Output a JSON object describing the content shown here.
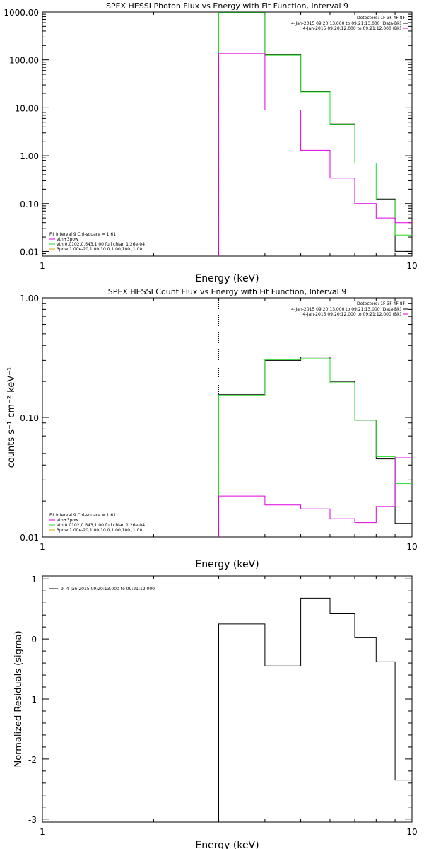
{
  "colors": {
    "black": "#000000",
    "magenta": "#e000e0",
    "green": "#22dd22",
    "orange": "#e8a000"
  },
  "chart_data": [
    {
      "type": "line",
      "title": "SPEX HESSI Photon Flux vs Energy with Fit Function, Interval 9",
      "xlabel": "Energy (keV)",
      "ylabel": "",
      "xscale": "log",
      "yscale": "log",
      "xlim": [
        1,
        10
      ],
      "ylim": [
        0.008,
        1000
      ],
      "xticks": [
        {
          "v": 1,
          "t": "1"
        },
        {
          "v": 10,
          "t": "10"
        }
      ],
      "yticks": [
        {
          "v": 1000,
          "t": "1000.00"
        },
        {
          "v": 100,
          "t": "100.00"
        },
        {
          "v": 10,
          "t": "10.00"
        },
        {
          "v": 1,
          "t": "1.00"
        },
        {
          "v": 0.1,
          "t": "0.10"
        },
        {
          "v": 0.01,
          "t": "0.01"
        }
      ],
      "legend_header": "Detectors: 1F 3F 4F 8F",
      "legend": [
        {
          "text": "4-Jan-2015 09:20:13.000 to 09:21:13.000 (Data-Bk)",
          "color": "black"
        },
        {
          "text": "4-Jan-2015 09:20:12.000 to 09:21:12.000 (Bk)",
          "color": "magenta"
        }
      ],
      "fit_legend": [
        {
          "text": "Fit Interval 9    Chi-square = 1.61",
          "color": ""
        },
        {
          "text": "vth+3pow",
          "color": "magenta"
        },
        {
          "text": "vth 0.0102,0.643,1.00   full chian 1.26e-04",
          "color": "green"
        },
        {
          "text": "3pow 1.00e-20,1.00,10.0,1.00,100.,1.00",
          "color": "orange"
        }
      ],
      "vline": 3,
      "series": [
        {
          "color": "black",
          "edges": [
            3,
            4,
            5,
            6,
            7,
            8,
            9,
            10
          ],
          "values": [
            1000,
            130,
            22,
            4.6,
            null,
            0.125,
            0.01
          ]
        },
        {
          "color": "green",
          "edges": [
            3,
            4,
            5,
            6,
            7,
            8,
            9,
            10
          ],
          "values": [
            970,
            125,
            21.5,
            4.5,
            0.7,
            0.12,
            0.022
          ]
        },
        {
          "color": "magenta",
          "edges": [
            3,
            4,
            5,
            6,
            7,
            8,
            9,
            10
          ],
          "values": [
            135,
            9,
            1.3,
            0.34,
            0.1,
            0.05,
            0.04
          ]
        }
      ]
    },
    {
      "type": "line",
      "title": "SPEX HESSI Count Flux vs Energy with Fit Function, Interval 9",
      "xlabel": "Energy (keV)",
      "ylabel": "counts s⁻¹ cm⁻² keV⁻¹",
      "xscale": "log",
      "yscale": "log",
      "xlim": [
        1,
        10
      ],
      "ylim": [
        0.01,
        1.0
      ],
      "xticks": [
        {
          "v": 1,
          "t": "1"
        },
        {
          "v": 10,
          "t": "10"
        }
      ],
      "yticks": [
        {
          "v": 1,
          "t": "1.00"
        },
        {
          "v": 0.1,
          "t": "0.10"
        },
        {
          "v": 0.01,
          "t": "0.01"
        }
      ],
      "legend_header": "Detectors: 1F 3F 4F 8F",
      "legend": [
        {
          "text": "4-Jan-2015 09:20:13.000 to 09:21:13.000 (Data-Bk)",
          "color": "black"
        },
        {
          "text": "4-Jan-2015 09:20:12.000 to 09:21:12.000 (Bk)",
          "color": "magenta"
        }
      ],
      "fit_legend": [
        {
          "text": "Fit Interval 9    Chi-square = 1.61",
          "color": ""
        },
        {
          "text": "vth+3pow",
          "color": "magenta"
        },
        {
          "text": "vth 0.0102,0.643,1.00   full chian 1.26e-04",
          "color": "green"
        },
        {
          "text": "3pow 1.00e-20,1.00,10.0,1.00,100.,1.00",
          "color": "orange"
        }
      ],
      "vline": 3,
      "series": [
        {
          "color": "black",
          "edges": [
            3,
            4,
            5,
            6,
            7,
            8,
            9,
            10
          ],
          "values": [
            0.155,
            0.3,
            0.32,
            0.2,
            0.095,
            0.045,
            0.013
          ]
        },
        {
          "color": "green",
          "edges": [
            3,
            4,
            5,
            6,
            7,
            8,
            9,
            10
          ],
          "values": [
            0.152,
            0.305,
            0.31,
            0.195,
            0.095,
            0.047,
            0.028
          ]
        },
        {
          "color": "magenta",
          "edges": [
            3,
            4,
            5,
            6,
            7,
            8,
            9,
            10
          ],
          "values": [
            0.022,
            0.0185,
            0.0172,
            0.0142,
            0.0132,
            0.018,
            0.046
          ]
        }
      ]
    },
    {
      "type": "line",
      "title": "",
      "xlabel": "Energy (keV)",
      "ylabel": "Normalized Residuals (sigma)",
      "xscale": "log",
      "yscale": "linear",
      "xlim": [
        1,
        10
      ],
      "ylim": [
        -3.05,
        1.05
      ],
      "xticks": [
        {
          "v": 1,
          "t": "1"
        },
        {
          "v": 10,
          "t": "10"
        }
      ],
      "yticks": [
        {
          "v": 1,
          "t": "1"
        },
        {
          "v": 0,
          "t": "0"
        },
        {
          "v": -1,
          "t": "-1"
        },
        {
          "v": -2,
          "t": "-2"
        },
        {
          "v": -3,
          "t": "-3"
        }
      ],
      "legend": [
        {
          "text": "9.  4-Jan-2015 09:20:13.000 to 09:21:12.000",
          "color": "black"
        }
      ],
      "series": [
        {
          "color": "black",
          "edges": [
            3,
            4,
            5,
            6,
            7,
            8,
            9,
            10
          ],
          "values": [
            0.25,
            -0.45,
            0.68,
            0.42,
            0.02,
            -0.38,
            -2.35
          ]
        }
      ]
    }
  ]
}
